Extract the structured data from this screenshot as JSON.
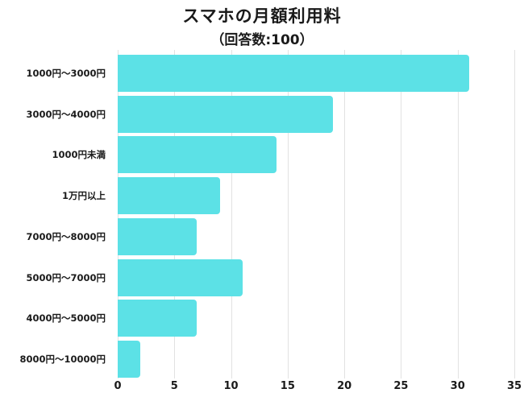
{
  "chart_data": {
    "type": "bar",
    "orientation": "horizontal",
    "title": "スマホの月額利用料",
    "subtitle": "（回答数:100）",
    "categories": [
      "1000円〜3000円",
      "3000円〜4000円",
      "1000円未満",
      "1万円以上",
      "7000円〜8000円",
      "5000円〜7000円",
      "4000円〜5000円",
      "8000円〜10000円"
    ],
    "values": [
      31,
      19,
      14,
      9,
      7,
      11,
      7,
      2
    ],
    "xlabel": "",
    "ylabel": "",
    "xlim": [
      0,
      35
    ],
    "xticks": [
      "0",
      "5",
      "10",
      "15",
      "20",
      "25",
      "30",
      "35"
    ],
    "grid": true,
    "bar_color": "#5ce1e6"
  }
}
